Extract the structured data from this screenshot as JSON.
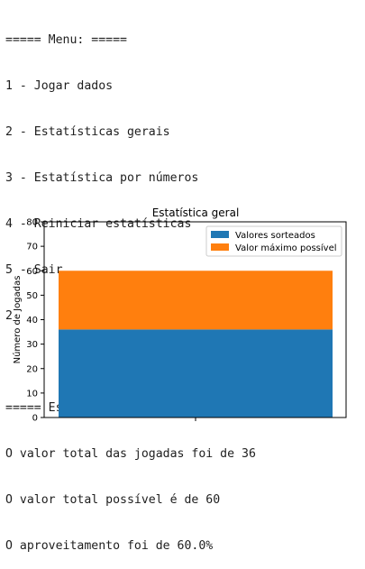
{
  "console": {
    "lines": [
      "===== Menu: =====",
      "1 - Jogar dados",
      "2 - Estatísticas gerais",
      "3 - Estatística por números",
      "4 - Reiniciar estatísticas",
      "5 - Sair",
      "2",
      "",
      "===== Estatísticas Gerais das jogadas =====",
      "O valor total das jogadas foi de 36",
      "O valor total possível é de 60",
      "O aproveitamento foi de 60.0%"
    ]
  },
  "chart_data": {
    "type": "bar",
    "stacked": true,
    "title": "Estatística geral",
    "xlabel": "",
    "ylabel": "Número de Jogadas",
    "categories": [
      ""
    ],
    "series": [
      {
        "name": "Valores sorteados",
        "values": [
          36
        ],
        "color": "#1f77b4"
      },
      {
        "name": "Valor máximo possível",
        "values": [
          24
        ],
        "color": "#ff7f0e"
      }
    ],
    "ylim": [
      0,
      80
    ],
    "yticks": [
      0,
      10,
      20,
      30,
      40,
      50,
      60,
      70,
      80
    ],
    "ytick_labels": [
      "0",
      "10",
      "20",
      "30",
      "40",
      "50",
      "60",
      "70",
      "80"
    ],
    "grid": false,
    "legend_position": "top-right"
  }
}
